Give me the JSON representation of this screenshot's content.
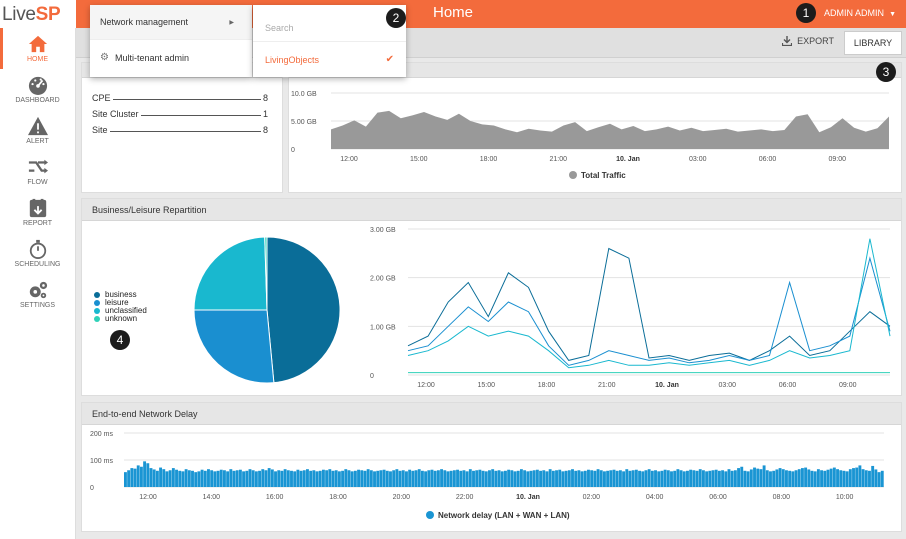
{
  "app": {
    "logo_live": "Live",
    "logo_sp": "SP",
    "title": "Home",
    "user": "ADMIN ADMIN"
  },
  "sidebar": {
    "items": [
      {
        "label": "HOME",
        "icon": "home-icon"
      },
      {
        "label": "DASHBOARD",
        "icon": "dashboard-icon"
      },
      {
        "label": "ALERT",
        "icon": "alert-icon"
      },
      {
        "label": "FLOW",
        "icon": "flow-icon"
      },
      {
        "label": "REPORT",
        "icon": "report-icon"
      },
      {
        "label": "SCHEDULING",
        "icon": "scheduling-icon"
      },
      {
        "label": "SETTINGS",
        "icon": "settings-icon"
      }
    ]
  },
  "toolbar": {
    "export_label": "EXPORT",
    "library_label": "LIBRARY"
  },
  "menu": {
    "network_management": "Network management",
    "multi_tenant_admin": "Multi-tenant admin",
    "search_placeholder": "Search",
    "selected_tenant": "LivingObjects"
  },
  "markers": [
    "1",
    "2",
    "3",
    "4"
  ],
  "inventory": {
    "rows": [
      {
        "label": "CPE",
        "value": "8"
      },
      {
        "label": "Site Cluster",
        "value": "1"
      },
      {
        "label": "Site",
        "value": "8"
      }
    ]
  },
  "panels": {
    "repartition_title": "Business/Leisure Repartition",
    "delay_title": "End-to-end Network Delay"
  },
  "colors": {
    "accent": "#f36b3c",
    "traffic": "#999999",
    "business": "#0a6d98",
    "leisure": "#1a8fd0",
    "unclassified": "#19b8cf",
    "unknown": "#2fd1b8",
    "delay": "#1a95d3"
  },
  "chart_data": [
    {
      "type": "area",
      "ylabels": [
        "10.0 GB",
        "5.00 GB",
        "0"
      ],
      "yticks": [
        10,
        5,
        0
      ],
      "ylim": [
        0,
        10
      ],
      "unit": "GB",
      "xlabels": [
        "12:00",
        "15:00",
        "18:00",
        "21:00",
        "10. Jan",
        "03:00",
        "06:00",
        "09:00"
      ],
      "xlim": [
        0,
        24
      ],
      "series": [
        {
          "name": "Total Traffic",
          "x": [
            0,
            0.5,
            1,
            1.5,
            2,
            2.5,
            3,
            3.5,
            4,
            4.5,
            5,
            5.5,
            6,
            6.5,
            7,
            7.5,
            8,
            8.5,
            9,
            9.5,
            10,
            10.5,
            11,
            11.5,
            12,
            12.5,
            13,
            13.5,
            14,
            14.5,
            15,
            15.5,
            16,
            16.5,
            17,
            17.5,
            18,
            18.5,
            19,
            19.5,
            20,
            20.5,
            21,
            21.5,
            22,
            22.5,
            23,
            23.5,
            24
          ],
          "values": [
            3.5,
            4.2,
            5.1,
            4.0,
            6.5,
            6.8,
            5.5,
            6.0,
            6.6,
            5.8,
            5.2,
            6.3,
            5.0,
            4.4,
            4.2,
            3.5,
            3.0,
            3.6,
            3.3,
            3.1,
            4.2,
            4.8,
            3.2,
            3.9,
            4.5,
            3.5,
            4.1,
            3.2,
            3.5,
            4.0,
            3.3,
            3.8,
            3.2,
            3.4,
            3.6,
            3.1,
            3.3,
            3.5,
            3.2,
            3.4,
            5.8,
            6.2,
            3.0,
            3.9,
            5.5,
            3.8,
            3.1,
            3.7,
            5.8
          ]
        }
      ]
    },
    {
      "type": "pie",
      "series": [
        {
          "name": "business",
          "value": 48.5
        },
        {
          "name": "leisure",
          "value": 26.5
        },
        {
          "name": "unclassified",
          "value": 24.5
        },
        {
          "name": "unknown",
          "value": 0.5
        }
      ]
    },
    {
      "type": "line",
      "ylabels": [
        "3.00 GB",
        "2.00 GB",
        "1.00 GB",
        "0"
      ],
      "yticks": [
        3,
        2,
        1,
        0
      ],
      "ylim": [
        0,
        3
      ],
      "unit": "GB",
      "xlabels": [
        "12:00",
        "15:00",
        "18:00",
        "21:00",
        "10. Jan",
        "03:00",
        "06:00",
        "09:00"
      ],
      "xlim": [
        0,
        24
      ],
      "x": [
        0,
        1,
        2,
        3,
        4,
        5,
        6,
        7,
        8,
        9,
        10,
        11,
        12,
        13,
        14,
        15,
        16,
        17,
        18,
        19,
        20,
        21,
        22,
        23,
        24
      ],
      "series": [
        {
          "name": "business",
          "values": [
            0.6,
            0.8,
            1.5,
            1.9,
            1.2,
            2.1,
            1.8,
            0.9,
            0.3,
            0.4,
            2.6,
            2.4,
            0.35,
            0.4,
            0.3,
            0.4,
            0.45,
            0.3,
            0.5,
            0.8,
            0.4,
            0.5,
            0.9,
            1.3,
            1.0
          ]
        },
        {
          "name": "leisure",
          "values": [
            0.5,
            0.6,
            1.0,
            1.4,
            1.1,
            1.5,
            1.3,
            0.6,
            0.2,
            0.3,
            0.5,
            0.4,
            0.3,
            0.35,
            0.25,
            0.3,
            0.4,
            0.3,
            0.4,
            1.9,
            0.5,
            0.6,
            0.8,
            2.4,
            0.9
          ]
        },
        {
          "name": "unclassified",
          "values": [
            0.4,
            0.5,
            0.7,
            1.0,
            0.8,
            0.9,
            0.8,
            0.5,
            0.15,
            0.2,
            0.3,
            0.2,
            0.2,
            0.25,
            0.2,
            0.25,
            0.3,
            0.2,
            0.3,
            0.5,
            0.35,
            0.4,
            0.5,
            2.8,
            0.8
          ]
        },
        {
          "name": "unknown",
          "values": [
            0.05,
            0.05,
            0.05,
            0.05,
            0.05,
            0.05,
            0.05,
            0.05,
            0.05,
            0.05,
            0.05,
            0.05,
            0.05,
            0.05,
            0.05,
            0.05,
            0.05,
            0.05,
            0.05,
            0.05,
            0.05,
            0.05,
            0.05,
            0.05,
            0.05
          ]
        }
      ]
    },
    {
      "type": "bar",
      "ylabels": [
        "200 ms",
        "100 ms",
        "0"
      ],
      "yticks": [
        200,
        100,
        0
      ],
      "ylim": [
        0,
        200
      ],
      "unit": "ms",
      "xlabels": [
        "12:00",
        "14:00",
        "16:00",
        "18:00",
        "20:00",
        "22:00",
        "10. Jan",
        "02:00",
        "04:00",
        "06:00",
        "08:00",
        "10:00"
      ],
      "xlim": [
        0,
        24
      ],
      "series": [
        {
          "name": "Network delay (LAN + WAN + LAN)",
          "values": [
            55,
            62,
            70,
            68,
            80,
            75,
            95,
            88,
            70,
            65,
            60,
            72,
            66,
            58,
            62,
            70,
            64,
            60,
            58,
            66,
            62,
            60,
            55,
            58,
            64,
            60,
            66,
            62,
            58,
            60,
            64,
            62,
            58,
            66,
            60,
            62,
            64,
            58,
            60,
            66,
            62,
            58,
            60,
            66,
            62,
            70,
            65,
            58,
            62,
            60,
            66,
            62,
            60,
            58,
            64,
            60,
            62,
            66,
            60,
            62,
            58,
            60,
            64,
            62,
            66,
            60,
            62,
            58,
            60,
            66,
            62,
            58,
            60,
            64,
            62,
            60,
            66,
            62,
            58,
            60,
            62,
            64,
            60,
            58,
            62,
            66,
            60,
            62,
            58,
            64,
            60,
            62,
            66,
            60,
            58,
            62,
            64,
            60,
            62,
            66,
            62,
            58,
            60,
            62,
            64,
            60,
            62,
            58,
            66,
            60,
            62,
            64,
            60,
            58,
            62,
            66,
            60,
            62,
            58,
            60,
            64,
            62,
            58,
            60,
            66,
            62,
            58,
            60,
            62,
            64,
            60,
            62,
            58,
            66,
            60,
            62,
            64,
            58,
            60,
            62,
            66,
            60,
            62,
            58,
            60,
            64,
            62,
            60,
            66,
            62,
            58,
            60,
            62,
            64,
            60,
            62,
            58,
            66,
            60,
            62,
            64,
            60,
            58,
            62,
            66,
            60,
            62,
            58,
            60,
            64,
            62,
            58,
            60,
            66,
            62,
            58,
            60,
            64,
            62,
            60,
            66,
            62,
            58,
            60,
            62,
            64,
            60,
            62,
            58,
            66,
            60,
            62,
            70,
            75,
            60,
            58,
            65,
            72,
            68,
            66,
            80,
            62,
            58,
            60,
            65,
            70,
            66,
            62,
            60,
            58,
            62,
            66,
            70,
            72,
            65,
            60,
            58,
            66,
            62,
            60,
            64,
            68,
            72,
            66,
            62,
            60,
            58,
            66,
            70,
            72,
            80,
            66,
            62,
            60,
            78,
            65,
            55,
            60
          ]
        }
      ]
    }
  ]
}
